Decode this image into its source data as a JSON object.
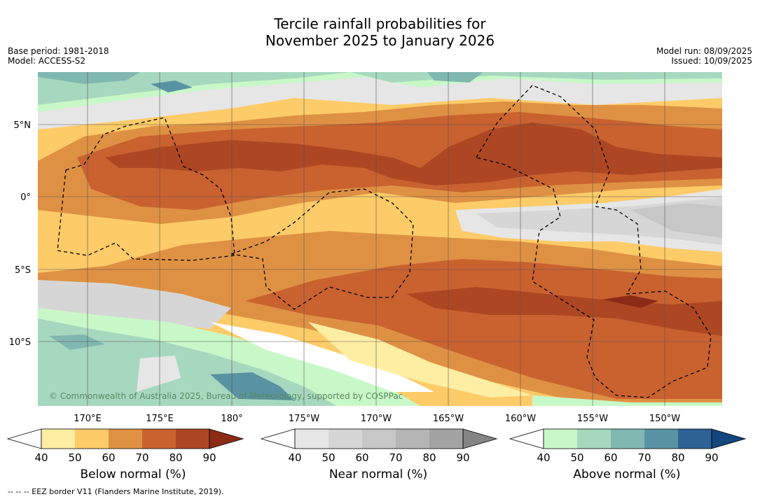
{
  "title_line1": "Tercile rainfall probabilities for",
  "title_line2": "November 2025 to January 2026",
  "base_period": "Base period: 1981-2018",
  "model": "Model: ACCESS-S2",
  "model_run": "Model run: 08/09/2025",
  "issued": "Issued: 10/09/2025",
  "copyright": "© Commonwealth of Australia 2025, Bureau of Meteorology, supported by COSPPac",
  "footnote": "--  --  -- EEZ border V11 (Flanders Marine Institute, 2019).",
  "lat_labels": [
    "5°N",
    "0°",
    "5°S",
    "10°S"
  ],
  "lon_labels": [
    "170°E",
    "175°E",
    "180°",
    "175°W",
    "170°W",
    "165°W",
    "160°W",
    "155°W",
    "150°W"
  ],
  "colorbars": [
    {
      "label": "Below normal (%)",
      "ticks": [
        "40",
        "50",
        "60",
        "70",
        "80",
        "90"
      ],
      "colors": [
        "#ffffff",
        "#fdeea3",
        "#fdcb68",
        "#df9143",
        "#c9622f",
        "#ad4723",
        "#8b2b16"
      ]
    },
    {
      "label": "Near normal (%)",
      "ticks": [
        "40",
        "50",
        "60",
        "70",
        "80",
        "90"
      ],
      "colors": [
        "#ffffff",
        "#e6e6e6",
        "#d6d6d6",
        "#c7c7c7",
        "#b5b5b5",
        "#a3a3a3",
        "#858585"
      ]
    },
    {
      "label": "Above normal (%)",
      "ticks": [
        "40",
        "50",
        "60",
        "70",
        "80",
        "90"
      ],
      "colors": [
        "#ffffff",
        "#c8f8c8",
        "#a6d8bf",
        "#81b7b1",
        "#5993a3",
        "#2e6194",
        "#15457d"
      ]
    }
  ]
}
